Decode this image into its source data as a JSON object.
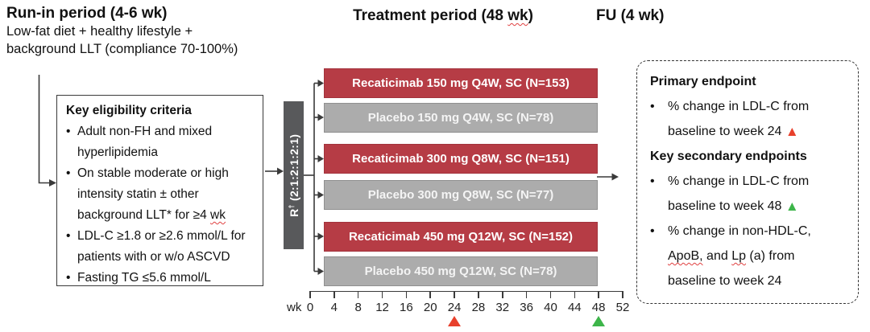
{
  "colors": {
    "arm_active": "#b63c45",
    "arm_active_border": "#a2333c",
    "arm_placebo": "#acacac",
    "arm_placebo_border": "#8f8f8f",
    "randomization_box": "#58595b",
    "marker_red": "#e8402c",
    "marker_green": "#3db54a",
    "line": "#3a3a3a",
    "spellcheck_wavy": "#e04040"
  },
  "chars": {
    "bullet": "•",
    "triangle": "▲"
  },
  "run_in": {
    "title": "Run-in period (4-6 wk)",
    "line1": "Low-fat diet + healthy lifestyle +",
    "line2": "background LLT (compliance 70-100%)"
  },
  "headers": {
    "treatment_pre": "Treatment period (48 ",
    "treatment_wavy": "wk",
    "treatment_post": ")",
    "fu": "FU (4 wk)"
  },
  "eligibility": {
    "title": "Key eligibility criteria",
    "b1_l1": "Adult non-FH and mixed",
    "b1_l2": "hyperlipidemia",
    "b2_l1": "On stable moderate or high",
    "b2_l2": "intensity statin ± other",
    "b2_l3_pre": "background LLT* for ≥4 ",
    "b2_l3_wavy": "wk",
    "b3_l1": "LDL-C ≥1.8 or ≥2.6 mmol/L for",
    "b3_l2": "patients with or w/o ASCVD",
    "b4_l1": "Fasting TG ≤5.6 mmol/L"
  },
  "randomization": {
    "r": "R",
    "dagger": "†",
    "ratio": " (2:1:2:1:2:1)"
  },
  "arms": [
    {
      "label": "Recaticimab 150 mg Q4W, SC (N=153)",
      "type": "active"
    },
    {
      "label": "Placebo 150 mg Q4W, SC (N=78)",
      "type": "placebo"
    },
    {
      "label": "Recaticimab 300 mg Q8W, SC (N=151)",
      "type": "active"
    },
    {
      "label": "Placebo 300 mg Q8W, SC (N=77)",
      "type": "placebo"
    },
    {
      "label": "Recaticimab 450 mg Q12W, SC (N=152)",
      "type": "active"
    },
    {
      "label": "Placebo 450 mg Q12W, SC (N=78)",
      "type": "placebo"
    }
  ],
  "timeline": {
    "unit": "wk",
    "ticks": [
      0,
      4,
      8,
      12,
      16,
      20,
      24,
      28,
      32,
      36,
      40,
      44,
      48,
      52
    ],
    "markers": [
      {
        "week": 24,
        "color": "red"
      },
      {
        "week": 48,
        "color": "green"
      }
    ]
  },
  "endpoints": {
    "primary_title": "Primary endpoint",
    "p1_l1": "% change in LDL-C from",
    "p1_l2": "baseline to week 24 ",
    "secondary_title": "Key secondary endpoints",
    "s1_l1": "% change in LDL-C from",
    "s1_l2": "baseline to week 48 ",
    "s2_l1": "% change in non-HDL-C,",
    "s2_l2_wavy1": "ApoB,",
    "s2_l2_mid": " and ",
    "s2_l2_wavy2": "Lp",
    "s2_l2_post": " (a) from",
    "s2_l3": "baseline to week 24"
  }
}
